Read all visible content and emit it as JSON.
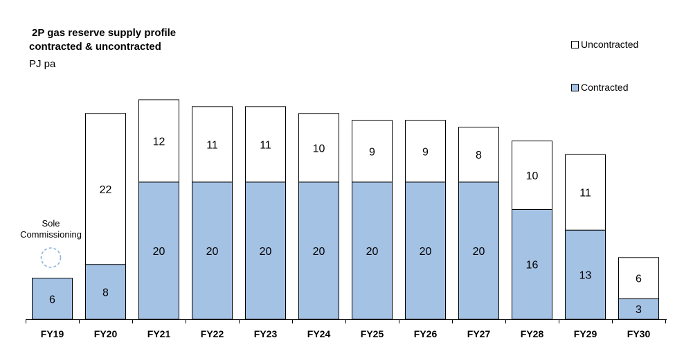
{
  "chart_data": {
    "type": "bar",
    "stacked": true,
    "title_line1": "2P gas reserve supply profile",
    "title_line2": "contracted & uncontracted",
    "unit_label": "PJ pa",
    "categories": [
      "FY19",
      "FY20",
      "FY21",
      "FY22",
      "FY23",
      "FY24",
      "FY25",
      "FY26",
      "FY27",
      "FY28",
      "FY29",
      "FY30"
    ],
    "series": [
      {
        "name": "Contracted",
        "color": "#a4c2e4",
        "values": [
          6,
          8,
          20,
          20,
          20,
          20,
          20,
          20,
          20,
          16,
          13,
          3
        ]
      },
      {
        "name": "Uncontracted",
        "color": "#ffffff",
        "values": [
          null,
          22,
          12,
          11,
          11,
          10,
          9,
          9,
          8,
          10,
          11,
          6
        ]
      }
    ],
    "legend": [
      {
        "name": "Uncontracted",
        "color": "#ffffff"
      },
      {
        "name": "Contracted",
        "color": "#a4c2e4"
      }
    ],
    "legend_position": "top-right",
    "ylim": [
      0,
      32.4
    ],
    "grid": false,
    "annotation": {
      "category": "FY19",
      "lines": [
        "Sole",
        "Commissioning"
      ],
      "marker": "dashed-circle"
    }
  }
}
